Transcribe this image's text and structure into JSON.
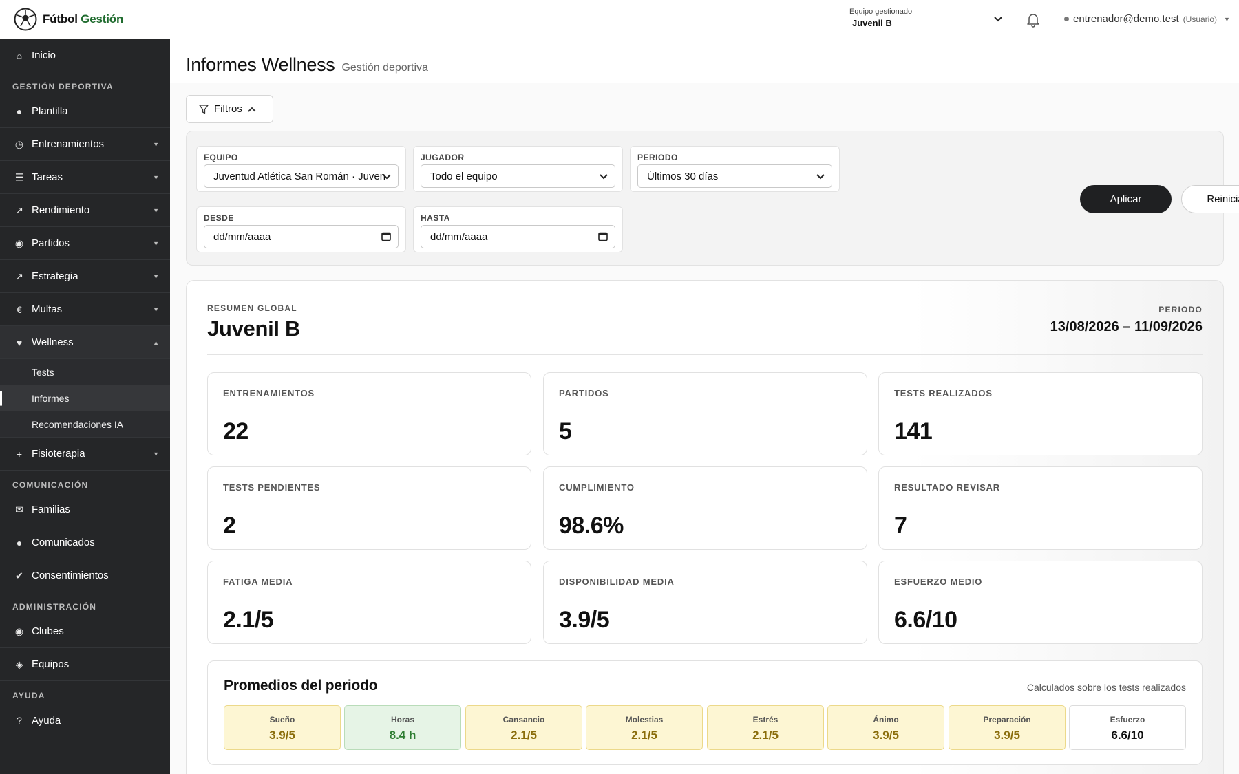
{
  "brand": {
    "part1": "Fútbol",
    "part2": "Gestión"
  },
  "header": {
    "team_label": "Equipo gestionado",
    "team_value": "Juvenil B",
    "user_email": "entrenador@demo.test",
    "user_role": "(Usuario)"
  },
  "sidebar": {
    "home": "Inicio",
    "sections": {
      "gestion": "GESTIÓN DEPORTIVA",
      "comunicacion": "COMUNICACIÓN",
      "administracion": "ADMINISTRACIÓN",
      "ayuda": "AYUDA"
    },
    "items": {
      "plantilla": "Plantilla",
      "entrenamientos": "Entrenamientos",
      "tareas": "Tareas",
      "rendimiento": "Rendimiento",
      "partidos": "Partidos",
      "estrategia": "Estrategia",
      "multas": "Multas",
      "wellness": "Wellness",
      "fisioterapia": "Fisioterapia",
      "familias": "Familias",
      "comunicados": "Comunicados",
      "consentimientos": "Consentimientos",
      "clubes": "Clubes",
      "equipos": "Equipos",
      "ayuda": "Ayuda"
    },
    "wellness_sub": {
      "tests": "Tests",
      "informes": "Informes",
      "recomendaciones": "Recomendaciones IA"
    }
  },
  "page": {
    "title": "Informes Wellness",
    "subtitle": "Gestión deportiva"
  },
  "filters": {
    "toggle_label": "Filtros",
    "equipo_label": "EQUIPO",
    "equipo_value": "Juventud Atlética San Román · Juvenil B",
    "jugador_label": "JUGADOR",
    "jugador_value": "Todo el equipo",
    "periodo_label": "PERIODO",
    "periodo_value": "Últimos 30 días",
    "desde_label": "DESDE",
    "desde_value": "dd/mm/aaaa",
    "hasta_label": "HASTA",
    "hasta_value": "dd/mm/aaaa",
    "apply_label": "Aplicar",
    "reset_label": "Reiniciar"
  },
  "summary": {
    "kicker": "RESUMEN GLOBAL",
    "team": "Juvenil B",
    "period_label": "PERIODO",
    "period_value": "13/08/2026 – 11/09/2026",
    "stats": [
      {
        "label": "ENTRENAMIENTOS",
        "value": "22"
      },
      {
        "label": "PARTIDOS",
        "value": "5"
      },
      {
        "label": "TESTS REALIZADOS",
        "value": "141"
      },
      {
        "label": "TESTS PENDIENTES",
        "value": "2"
      },
      {
        "label": "CUMPLIMIENTO",
        "value": "98.6%"
      },
      {
        "label": "RESULTADO REVISAR",
        "value": "7"
      },
      {
        "label": "FATIGA MEDIA",
        "value": "2.1/5"
      },
      {
        "label": "DISPONIBILIDAD MEDIA",
        "value": "3.9/5"
      },
      {
        "label": "ESFUERZO MEDIO",
        "value": "6.6/10"
      }
    ]
  },
  "averages": {
    "title": "Promedios del periodo",
    "note": "Calculados sobre los tests realizados",
    "items": [
      {
        "label": "Sueño",
        "value": "3.9/5",
        "bg": "#fdf6d3",
        "border": "#ecd98a",
        "color": "#8a6d0b"
      },
      {
        "label": "Horas",
        "value": "8.4 h",
        "bg": "#e6f4e6",
        "border": "#b9dcb9",
        "color": "#2e7d32"
      },
      {
        "label": "Cansancio",
        "value": "2.1/5",
        "bg": "#fdf6d3",
        "border": "#ecd98a",
        "color": "#8a6d0b"
      },
      {
        "label": "Molestias",
        "value": "2.1/5",
        "bg": "#fdf6d3",
        "border": "#ecd98a",
        "color": "#8a6d0b"
      },
      {
        "label": "Estrés",
        "value": "2.1/5",
        "bg": "#fdf6d3",
        "border": "#ecd98a",
        "color": "#8a6d0b"
      },
      {
        "label": "Ánimo",
        "value": "3.9/5",
        "bg": "#fdf6d3",
        "border": "#ecd98a",
        "color": "#8a6d0b"
      },
      {
        "label": "Preparación",
        "value": "3.9/5",
        "bg": "#fdf6d3",
        "border": "#ecd98a",
        "color": "#8a6d0b"
      },
      {
        "label": "Esfuerzo",
        "value": "6.6/10",
        "bg": "#ffffff",
        "border": "#dcdcdc",
        "color": "#111111"
      }
    ]
  }
}
